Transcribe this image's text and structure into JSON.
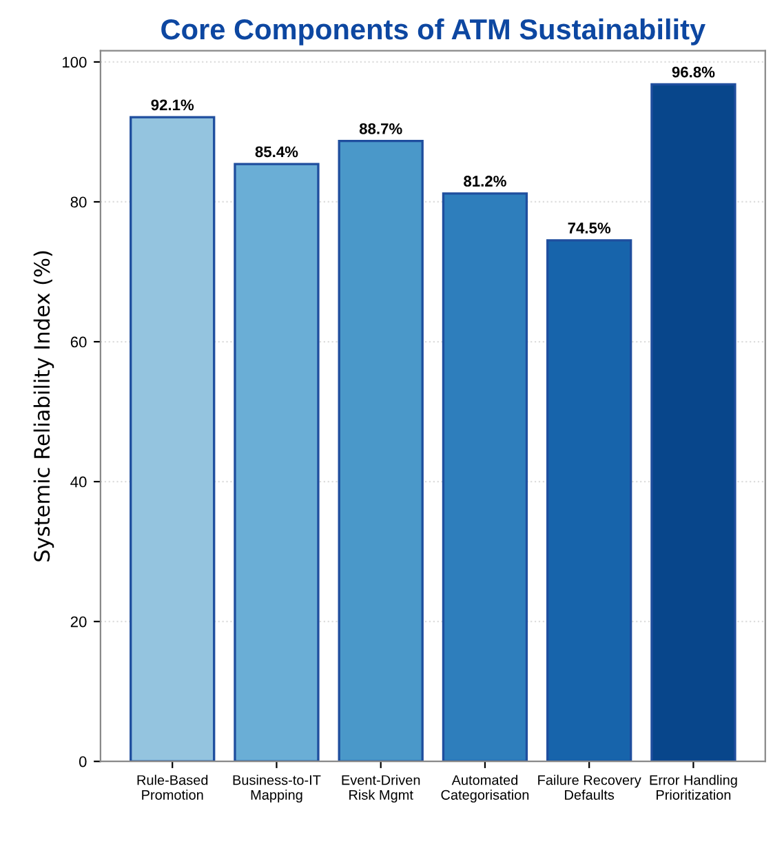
{
  "chart_data": {
    "type": "bar",
    "title": "Core Components of ATM Sustainability",
    "ylabel": "Systemic Reliability Index (%)",
    "categories": [
      "Rule-Based\nPromotion",
      "Business-to-IT\nMapping",
      "Event-Driven\nRisk Mgmt",
      "Automated\nCategorisation",
      "Failure Recovery\nDefaults",
      "Error Handling\nPrioritization"
    ],
    "values": [
      92.1,
      85.4,
      88.7,
      81.2,
      74.5,
      96.8
    ],
    "value_labels": [
      "92.1%",
      "85.4%",
      "88.7%",
      "81.2%",
      "74.5%",
      "96.8%"
    ],
    "colors": [
      "#94c4df",
      "#6aaed6",
      "#4a98c9",
      "#2e7ebc",
      "#1764ab",
      "#08468b"
    ],
    "ylim": [
      0,
      101.6
    ],
    "yticks": [
      0,
      20,
      40,
      60,
      80,
      100
    ],
    "grid": "y",
    "legend": false
  }
}
